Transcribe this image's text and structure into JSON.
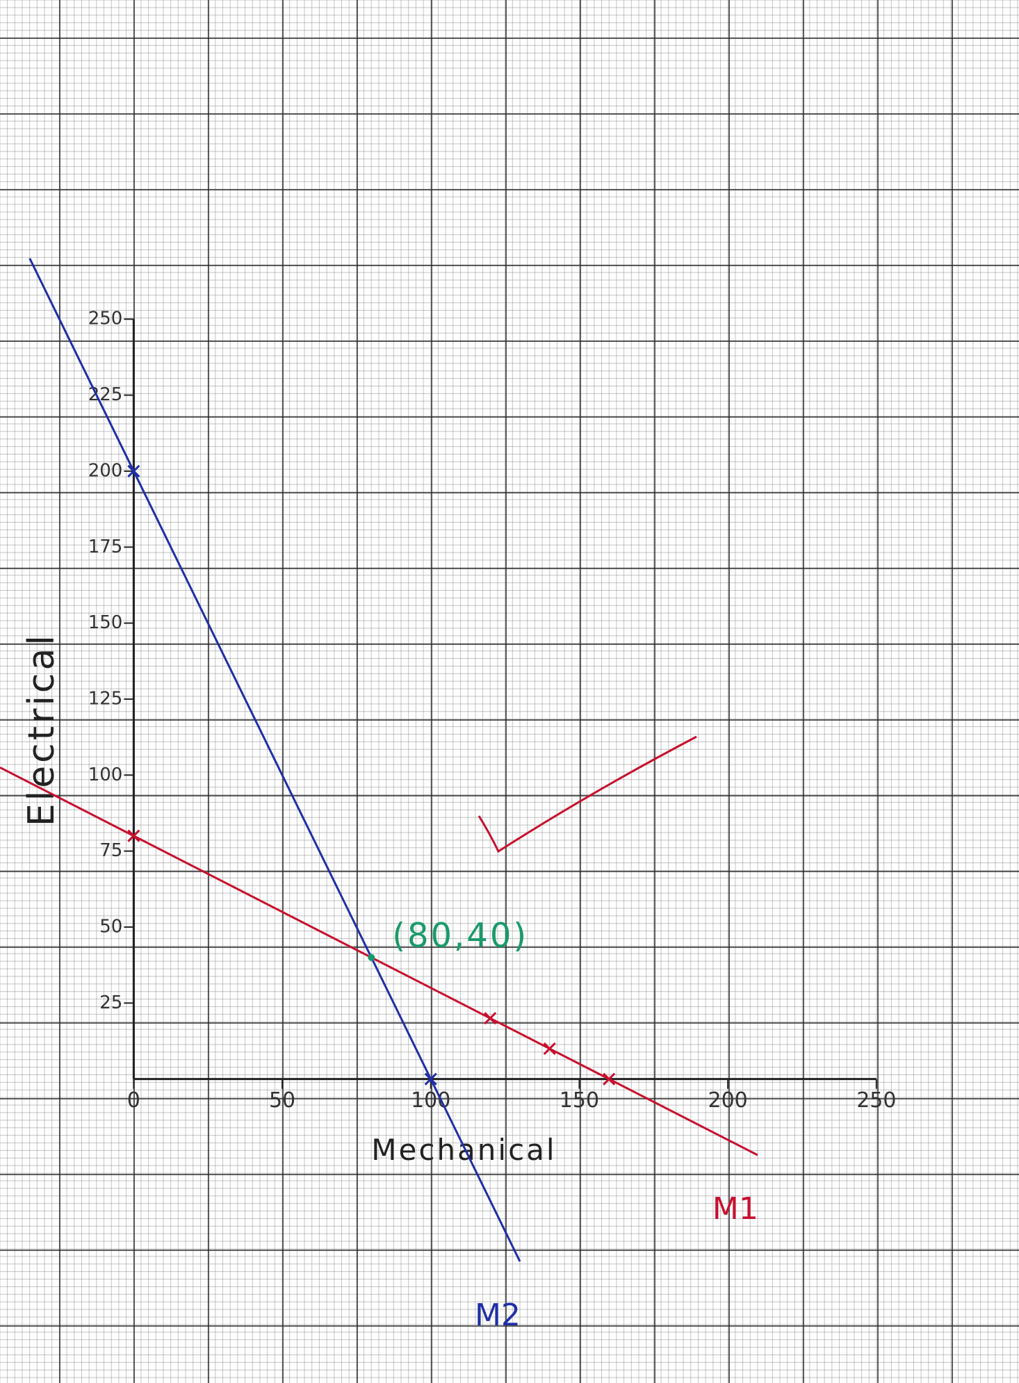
{
  "chart_data": {
    "type": "line",
    "x_label": "Mechanical",
    "y_label": "Electrical",
    "xlim": [
      -45,
      298
    ],
    "ylim": [
      -100,
      355
    ],
    "xticks": [
      0,
      50,
      100,
      150,
      200,
      250
    ],
    "yticks": [
      25,
      50,
      75,
      100,
      125,
      150,
      175,
      200,
      225,
      250
    ],
    "series": [
      {
        "name": "M1",
        "color": "#c8102e",
        "x": [
          -45,
          0,
          120,
          140,
          160,
          210
        ],
        "values": [
          102.5,
          80,
          20,
          10,
          0,
          -25
        ]
      },
      {
        "name": "M2",
        "color": "#1f2fa8",
        "x": [
          -35,
          0,
          100,
          130
        ],
        "values": [
          270,
          200,
          0,
          -60
        ]
      }
    ],
    "annotations": [
      {
        "text": "(80,40)",
        "x": 80,
        "y": 40,
        "color": "#1a9a6a"
      }
    ]
  }
}
